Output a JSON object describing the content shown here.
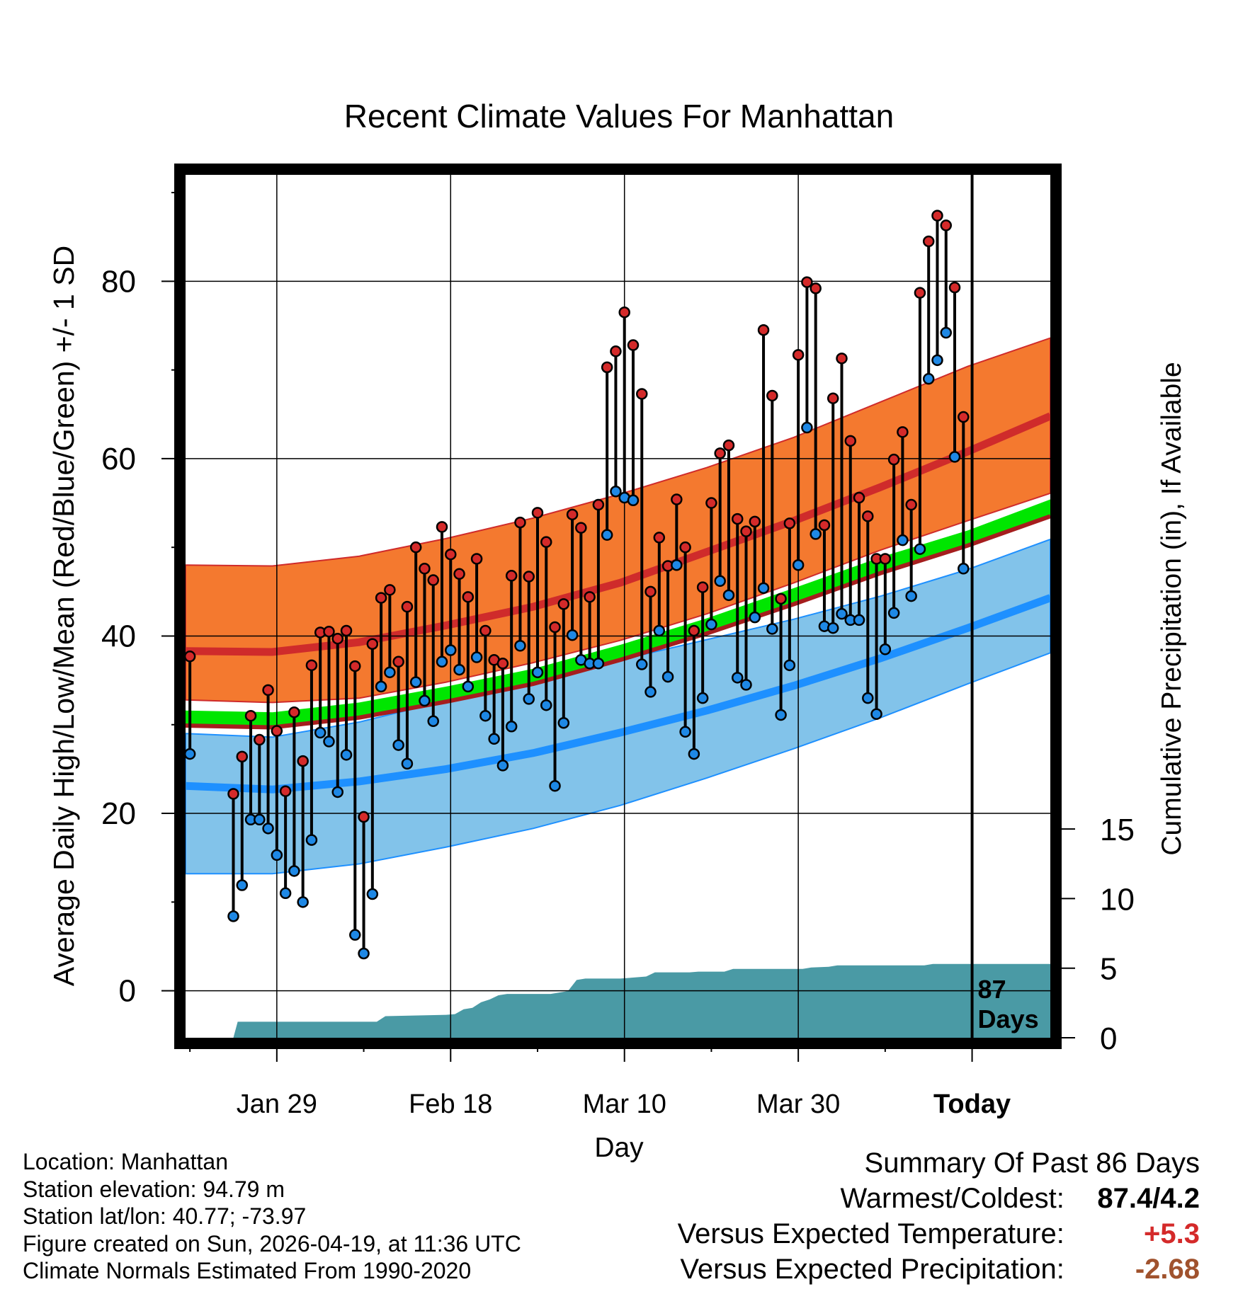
{
  "colors": {
    "high_band": "#f4792f",
    "high_line": "#cf2b2b",
    "low_band": "#82c3ea",
    "low_line": "#1e90ff",
    "mean_band": "#00e600",
    "mean_edge": "#a51e1e",
    "precip_fill": "#4a9aa5",
    "high_point": "#d42a2a",
    "low_point": "#1e88e5",
    "temp_anomaly": "#d42a2a",
    "precip_anomaly": "#a0522d"
  },
  "chart_data": {
    "type": "line",
    "title": "Recent Climate Values For Manhattan",
    "xlabel": "Day",
    "ylabel": "Average Daily High/Low/Mean (Red/Blue/Green) +/- 1 SD",
    "ylabel_right": "Cumulative Precipitation (in), If Available",
    "xlim": [
      0,
      99.5
    ],
    "ylim": [
      -5.3,
      92
    ],
    "y2lim": [
      0,
      62
    ],
    "yticks": [
      0,
      20,
      40,
      60,
      80
    ],
    "y2ticks": [
      0,
      5,
      10,
      15
    ],
    "xticks": [
      {
        "day": 10.5,
        "label": "Jan 29"
      },
      {
        "day": 30.5,
        "label": "Feb 18"
      },
      {
        "day": 50.5,
        "label": "Mar 10"
      },
      {
        "day": 70.5,
        "label": "Mar 30"
      },
      {
        "day": 90.5,
        "label": "Today"
      }
    ],
    "today_day": 90.5,
    "today_annotation": [
      "87",
      "Days"
    ],
    "normals": {
      "days": [
        0,
        10,
        20,
        30,
        40,
        50,
        60,
        70,
        80,
        90,
        99.5
      ],
      "high_mean": [
        38.3,
        38.2,
        39.3,
        41.2,
        43.3,
        46.0,
        49.5,
        53.0,
        56.8,
        60.8,
        64.8
      ],
      "high_upper": [
        48.0,
        47.9,
        49.0,
        51.0,
        53.3,
        56.0,
        59.0,
        62.4,
        66.4,
        70.4,
        73.6
      ],
      "high_lower": [
        32.8,
        32.5,
        33.0,
        34.8,
        37.0,
        39.5,
        42.5,
        46.0,
        49.7,
        53.0,
        56.1
      ],
      "mean_upper": [
        31.6,
        31.4,
        32.5,
        34.3,
        36.3,
        39.0,
        42.0,
        45.4,
        48.9,
        51.9,
        55.4
      ],
      "mean_lower": [
        29.9,
        29.7,
        30.8,
        32.6,
        34.6,
        37.3,
        40.3,
        43.6,
        47.1,
        50.2,
        53.5
      ],
      "low_mean": [
        23.1,
        22.7,
        23.6,
        25.0,
        26.8,
        29.1,
        31.6,
        34.4,
        37.5,
        40.9,
        44.3
      ],
      "low_upper": [
        29.0,
        28.6,
        30.3,
        32.7,
        35.0,
        37.3,
        39.6,
        41.9,
        44.5,
        47.5,
        50.9
      ],
      "low_lower": [
        13.2,
        13.2,
        14.3,
        16.2,
        18.3,
        20.9,
        24.0,
        27.3,
        30.8,
        34.6,
        38.1
      ]
    },
    "highs": [
      37.7,
      null,
      null,
      null,
      null,
      22.2,
      26.4,
      31.0,
      28.3,
      33.9,
      29.3,
      22.5,
      31.4,
      25.9,
      36.7,
      40.4,
      40.5,
      39.7,
      40.6,
      36.6,
      19.6,
      39.1,
      44.3,
      45.2,
      37.1,
      43.3,
      50.0,
      47.6,
      46.3,
      52.3,
      49.2,
      47.0,
      44.4,
      48.7,
      40.6,
      37.3,
      36.9,
      46.8,
      52.8,
      46.7,
      53.9,
      50.6,
      41.0,
      43.6,
      53.7,
      52.2,
      44.4,
      54.8,
      70.3,
      72.1,
      76.5,
      72.8,
      67.3,
      45.0,
      51.1,
      47.9,
      55.4,
      50.0,
      40.6,
      45.5,
      55.0,
      60.6,
      61.5,
      53.2,
      51.8,
      52.9,
      74.5,
      67.1,
      44.2,
      52.7,
      71.7,
      79.9,
      79.2,
      52.5,
      66.8,
      71.3,
      62.0,
      55.6,
      53.5,
      48.7,
      48.7,
      59.9,
      63.0,
      54.8,
      78.7,
      84.5,
      87.4,
      86.3,
      79.3,
      64.7
    ],
    "lows": [
      26.7,
      null,
      null,
      null,
      null,
      8.4,
      11.9,
      19.3,
      19.3,
      18.3,
      15.3,
      11.0,
      13.5,
      10.0,
      17.0,
      29.1,
      28.1,
      22.4,
      26.6,
      6.3,
      4.2,
      10.9,
      34.3,
      35.9,
      27.7,
      25.6,
      34.8,
      32.7,
      30.4,
      37.1,
      38.4,
      36.2,
      34.3,
      37.6,
      31.0,
      28.4,
      25.4,
      29.8,
      38.9,
      32.9,
      35.9,
      32.2,
      23.1,
      30.2,
      40.1,
      37.3,
      36.9,
      36.9,
      51.4,
      56.3,
      55.6,
      55.3,
      36.8,
      33.7,
      40.6,
      35.4,
      48.0,
      29.2,
      26.7,
      33.0,
      41.3,
      46.2,
      44.6,
      35.3,
      34.5,
      42.1,
      45.4,
      40.8,
      31.1,
      36.7,
      48.0,
      63.5,
      51.5,
      41.1,
      40.9,
      42.5,
      41.8,
      41.8,
      33.0,
      31.2,
      38.5,
      42.6,
      50.8,
      44.5,
      49.8,
      69.0,
      71.1,
      74.2,
      60.2,
      47.6
    ],
    "precip_cumulative": {
      "days": [
        0,
        5.5,
        6,
        22,
        23,
        30,
        31,
        32,
        33,
        34,
        35,
        36,
        37,
        42,
        43,
        44,
        45,
        46,
        50,
        51,
        53,
        54,
        58,
        59,
        62,
        63,
        71,
        72,
        74,
        75,
        85,
        86,
        99.5
      ],
      "values": [
        0,
        0,
        1.15,
        1.15,
        1.55,
        1.65,
        1.7,
        2.05,
        2.15,
        2.55,
        2.75,
        3.05,
        3.15,
        3.15,
        3.25,
        3.35,
        4.15,
        4.25,
        4.25,
        4.3,
        4.4,
        4.7,
        4.7,
        4.75,
        4.75,
        4.95,
        4.95,
        5.05,
        5.1,
        5.2,
        5.2,
        5.3,
        5.3
      ]
    }
  },
  "summary": {
    "title": "Summary Of Past 86 Days",
    "warmest_coldest_label": "Warmest/Coldest:",
    "warmest_coldest_value": "87.4/4.2",
    "temp_label": "Versus Expected Temperature:",
    "temp_value": "+5.3",
    "precip_label": "Versus Expected Precipitation:",
    "precip_value": "-2.68"
  },
  "station": {
    "location": "Location: Manhattan",
    "elevation": "Station elevation: 94.79 m",
    "latlon": "Station lat/lon: 40.77; -73.97",
    "created": "Figure created on Sun, 2026-04-19, at 11:36 UTC",
    "normals": "Climate Normals Estimated From 1990-2020"
  }
}
